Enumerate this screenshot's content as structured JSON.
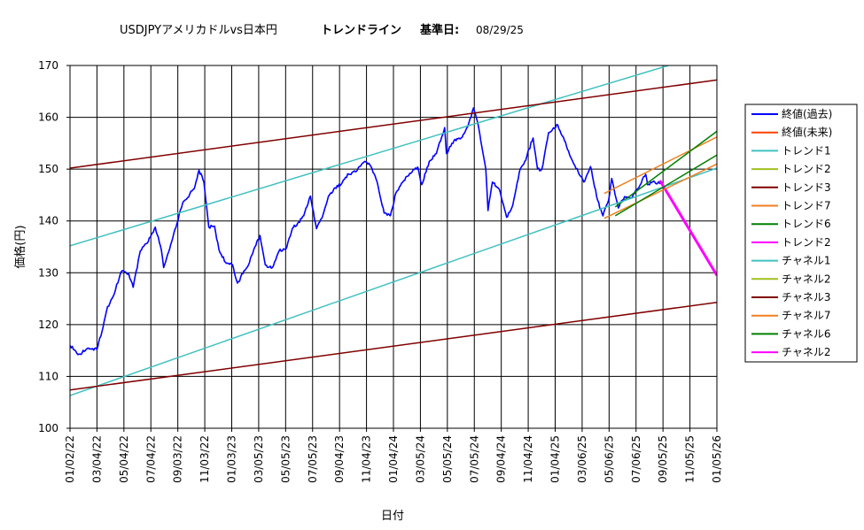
{
  "chart_data": {
    "type": "line",
    "title_parts": {
      "main": "USDJPYアメリカドルvs日本円",
      "trend": "トレンドライン",
      "base_label": "基準日:",
      "base_date": "08/29/25"
    },
    "xlabel": "日付",
    "ylabel": "価格(円)",
    "ylim": [
      100,
      170
    ],
    "yticks": [
      100,
      110,
      120,
      130,
      140,
      150,
      160,
      170
    ],
    "x_tick_labels": [
      "01/02/22",
      "03/04/22",
      "05/04/22",
      "07/04/22",
      "09/03/22",
      "11/03/22",
      "01/03/23",
      "03/05/23",
      "05/05/23",
      "07/05/23",
      "09/04/23",
      "11/04/23",
      "01/04/24",
      "03/05/24",
      "05/05/24",
      "07/05/24",
      "09/04/24",
      "11/04/24",
      "01/04/25",
      "03/06/25",
      "05/06/25",
      "07/06/25",
      "09/05/25",
      "11/05/25",
      "01/05/26"
    ],
    "grid": true,
    "legend_position": "right",
    "series": [
      {
        "name": "終値(過去)",
        "color": "#0000ff",
        "points": [
          [
            "01/02/22",
            116
          ],
          [
            "01/20/22",
            114.2
          ],
          [
            "02/10/22",
            115.4
          ],
          [
            "03/04/22",
            115.2
          ],
          [
            "03/15/22",
            118.5
          ],
          [
            "03/28/22",
            123.5
          ],
          [
            "04/10/22",
            125.5
          ],
          [
            "04/28/22",
            130.2
          ],
          [
            "05/15/22",
            129.8
          ],
          [
            "05/25/22",
            127.2
          ],
          [
            "06/10/22",
            134.2
          ],
          [
            "06/28/22",
            136
          ],
          [
            "07/14/22",
            138.8
          ],
          [
            "07/28/22",
            134.3
          ],
          [
            "08/02/22",
            131
          ],
          [
            "08/18/22",
            135.5
          ],
          [
            "09/01/22",
            139.5
          ],
          [
            "09/14/22",
            143.5
          ],
          [
            "09/25/22",
            144.5
          ],
          [
            "10/10/22",
            146.2
          ],
          [
            "10/21/22",
            149.8
          ],
          [
            "11/01/22",
            147.5
          ],
          [
            "11/12/22",
            138.8
          ],
          [
            "11/25/22",
            139
          ],
          [
            "12/05/22",
            134.5
          ],
          [
            "12/20/22",
            132
          ],
          [
            "01/05/23",
            131.5
          ],
          [
            "01/16/23",
            128
          ],
          [
            "01/28/23",
            129.8
          ],
          [
            "02/10/23",
            131.5
          ],
          [
            "02/22/23",
            134.5
          ],
          [
            "03/08/23",
            137.2
          ],
          [
            "03/20/23",
            131.5
          ],
          [
            "04/05/23",
            131
          ],
          [
            "04/20/23",
            134.2
          ],
          [
            "05/05/23",
            134.5
          ],
          [
            "05/20/23",
            138.5
          ],
          [
            "06/01/23",
            139.5
          ],
          [
            "06/15/23",
            141
          ],
          [
            "06/30/23",
            144.8
          ],
          [
            "07/14/23",
            138.5
          ],
          [
            "07/28/23",
            141
          ],
          [
            "08/10/23",
            144.8
          ],
          [
            "08/25/23",
            146.4
          ],
          [
            "09/10/23",
            147.4
          ],
          [
            "09/25/23",
            149
          ],
          [
            "10/10/23",
            149.5
          ],
          [
            "10/31/23",
            151.5
          ],
          [
            "11/14/23",
            150.5
          ],
          [
            "11/28/23",
            147.5
          ],
          [
            "12/14/23",
            141.5
          ],
          [
            "12/28/23",
            141
          ],
          [
            "01/10/24",
            145.5
          ],
          [
            "01/25/24",
            147.5
          ],
          [
            "02/10/24",
            149.2
          ],
          [
            "02/28/24",
            150.4
          ],
          [
            "03/08/24",
            147
          ],
          [
            "03/25/24",
            151.5
          ],
          [
            "04/10/24",
            153
          ],
          [
            "04/29/24",
            158
          ],
          [
            "05/03/24",
            153
          ],
          [
            "05/20/24",
            155.5
          ],
          [
            "06/05/24",
            156
          ],
          [
            "06/20/24",
            158.2
          ],
          [
            "07/03/24",
            161.8
          ],
          [
            "07/15/24",
            158
          ],
          [
            "07/31/24",
            150
          ],
          [
            "08/05/24",
            142
          ],
          [
            "08/15/24",
            147.5
          ],
          [
            "08/31/24",
            146
          ],
          [
            "09/16/24",
            140.7
          ],
          [
            "09/30/24",
            143
          ],
          [
            "10/15/24",
            149.5
          ],
          [
            "11/01/24",
            152.5
          ],
          [
            "11/15/24",
            156
          ],
          [
            "11/25/24",
            150
          ],
          [
            "12/05/24",
            150
          ],
          [
            "12/20/24",
            157
          ],
          [
            "01/10/25",
            158.5
          ],
          [
            "01/25/25",
            155.5
          ],
          [
            "02/10/25",
            152
          ],
          [
            "02/25/25",
            149.5
          ],
          [
            "03/10/25",
            147.5
          ],
          [
            "03/25/25",
            150.5
          ],
          [
            "04/10/25",
            144
          ],
          [
            "04/22/25",
            141
          ],
          [
            "05/05/25",
            144
          ],
          [
            "05/12/25",
            148.2
          ],
          [
            "05/27/25",
            142.5
          ],
          [
            "06/10/25",
            144.7
          ],
          [
            "06/25/25",
            144.5
          ],
          [
            "07/10/25",
            146.2
          ],
          [
            "07/28/25",
            149
          ],
          [
            "08/01/25",
            147
          ],
          [
            "08/15/25",
            147.7
          ],
          [
            "08/29/25",
            147.1
          ]
        ]
      },
      {
        "name": "終値(未来)",
        "color": "#ff4000",
        "points": []
      },
      {
        "name": "トレンド1",
        "color": "#40c0c0",
        "points": [
          [
            "01/02/22",
            135.2
          ],
          [
            "09/17/25",
            170
          ]
        ]
      },
      {
        "name": "トレンド2",
        "color": "#a0c020",
        "points": []
      },
      {
        "name": "トレンド3",
        "color": "#800000",
        "points": [
          [
            "01/02/22",
            150.2
          ],
          [
            "01/05/26",
            167.2
          ]
        ]
      },
      {
        "name": "トレンド7",
        "color": "#f08020",
        "points": [
          [
            "04/25/25",
            145.3
          ],
          [
            "01/05/26",
            156.2
          ]
        ]
      },
      {
        "name": "トレンド6",
        "color": "#008000",
        "points": [
          [
            "05/20/25",
            142.7
          ],
          [
            "01/05/26",
            157.3
          ]
        ]
      },
      {
        "name": "トレンド2",
        "color": "#ff00ff",
        "points": [
          [
            "08/29/25",
            147.8
          ],
          [
            "01/05/26",
            129.5
          ]
        ]
      },
      {
        "name": "チャネル1",
        "color": "#40c0c0",
        "points": [
          [
            "01/02/22",
            106.3
          ],
          [
            "01/05/26",
            150.2
          ]
        ]
      },
      {
        "name": "チャネル2",
        "color": "#a0c020",
        "points": []
      },
      {
        "name": "チャネル3",
        "color": "#800000",
        "points": [
          [
            "01/02/22",
            107.4
          ],
          [
            "01/05/26",
            124.3
          ]
        ]
      },
      {
        "name": "チャネル7",
        "color": "#f08020",
        "points": [
          [
            "04/25/25",
            140.5
          ],
          [
            "01/05/26",
            151
          ]
        ]
      },
      {
        "name": "チャネル6",
        "color": "#008000",
        "points": [
          [
            "05/20/25",
            141
          ],
          [
            "01/05/26",
            152.7
          ]
        ]
      },
      {
        "name": "チャネル2",
        "color": "#ff00ff",
        "points": []
      }
    ]
  }
}
